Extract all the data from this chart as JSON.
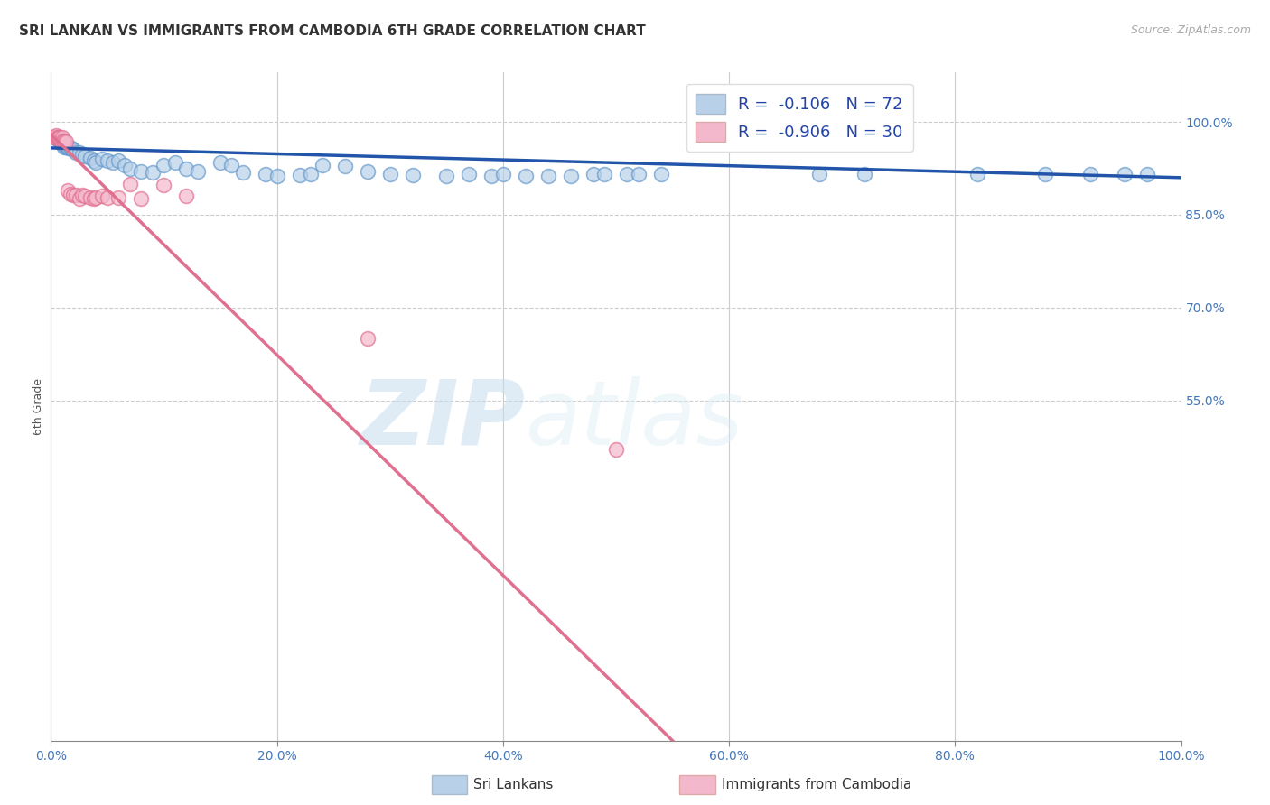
{
  "title": "SRI LANKAN VS IMMIGRANTS FROM CAMBODIA 6TH GRADE CORRELATION CHART",
  "source": "Source: ZipAtlas.com",
  "ylabel": "6th Grade",
  "right_yticks": [
    "100.0%",
    "85.0%",
    "70.0%",
    "55.0%"
  ],
  "right_ytick_vals": [
    1.0,
    0.85,
    0.7,
    0.55
  ],
  "watermark_zip": "ZIP",
  "watermark_atlas": "atlas",
  "legend_blue_label": "R =  -0.106   N = 72",
  "legend_pink_label": "R =  -0.906   N = 30",
  "legend_blue_color": "#b8d0e8",
  "legend_pink_color": "#f4b8cc",
  "scatter_blue_facecolor": "#b8d0e8",
  "scatter_blue_edgecolor": "#6699cc",
  "scatter_pink_facecolor": "#f4b8cc",
  "scatter_pink_edgecolor": "#e07090",
  "line_blue_color": "#2255aa",
  "line_pink_color": "#e07090",
  "background_color": "#ffffff",
  "grid_color": "#cccccc",
  "bottom_legend_1": "Sri Lankans",
  "bottom_legend_2": "Immigrants from Cambodia",
  "title_fontsize": 11,
  "axis_label_fontsize": 9,
  "tick_fontsize": 10,
  "source_fontsize": 9,
  "blue_scatter_x": [
    0.003,
    0.004,
    0.005,
    0.006,
    0.007,
    0.007,
    0.008,
    0.009,
    0.01,
    0.01,
    0.011,
    0.012,
    0.013,
    0.014,
    0.015,
    0.016,
    0.017,
    0.018,
    0.02,
    0.022,
    0.025,
    0.028,
    0.03,
    0.035,
    0.038,
    0.04,
    0.045,
    0.05,
    0.055,
    0.06,
    0.065,
    0.07,
    0.08,
    0.09,
    0.1,
    0.11,
    0.12,
    0.13,
    0.15,
    0.16,
    0.17,
    0.19,
    0.2,
    0.22,
    0.23,
    0.24,
    0.26,
    0.28,
    0.3,
    0.32,
    0.35,
    0.37,
    0.39,
    0.4,
    0.42,
    0.44,
    0.46,
    0.48,
    0.49,
    0.51,
    0.52,
    0.54,
    0.6,
    0.62,
    0.65,
    0.68,
    0.72,
    0.82,
    0.88,
    0.92,
    0.95,
    0.97
  ],
  "blue_scatter_y": [
    0.975,
    0.975,
    0.975,
    0.975,
    0.975,
    0.97,
    0.97,
    0.965,
    0.97,
    0.965,
    0.965,
    0.96,
    0.96,
    0.96,
    0.96,
    0.958,
    0.958,
    0.958,
    0.955,
    0.95,
    0.95,
    0.948,
    0.945,
    0.942,
    0.938,
    0.935,
    0.94,
    0.938,
    0.935,
    0.938,
    0.93,
    0.925,
    0.92,
    0.918,
    0.93,
    0.935,
    0.925,
    0.92,
    0.935,
    0.93,
    0.918,
    0.916,
    0.912,
    0.914,
    0.916,
    0.93,
    0.928,
    0.92,
    0.916,
    0.914,
    0.912,
    0.916,
    0.912,
    0.916,
    0.912,
    0.912,
    0.912,
    0.916,
    0.916,
    0.916,
    0.916,
    0.916,
    0.978,
    0.978,
    0.978,
    0.916,
    0.916,
    0.916,
    0.916,
    0.916,
    0.916,
    0.916
  ],
  "pink_scatter_x": [
    0.003,
    0.004,
    0.005,
    0.006,
    0.007,
    0.008,
    0.009,
    0.01,
    0.011,
    0.012,
    0.013,
    0.015,
    0.017,
    0.02,
    0.022,
    0.025,
    0.028,
    0.03,
    0.035,
    0.038,
    0.04,
    0.045,
    0.05,
    0.06,
    0.07,
    0.08,
    0.1,
    0.12,
    0.28,
    0.5
  ],
  "pink_scatter_y": [
    0.975,
    0.975,
    0.978,
    0.975,
    0.975,
    0.975,
    0.97,
    0.975,
    0.97,
    0.968,
    0.968,
    0.89,
    0.884,
    0.882,
    0.882,
    0.876,
    0.882,
    0.88,
    0.878,
    0.876,
    0.878,
    0.88,
    0.878,
    0.878,
    0.9,
    0.876,
    0.898,
    0.88,
    0.65,
    0.47
  ],
  "blue_line_x0": 0.0,
  "blue_line_y0": 0.958,
  "blue_line_x1": 1.0,
  "blue_line_y1": 0.91,
  "pink_line_x0": 0.0,
  "pink_line_y0": 0.98,
  "pink_line_x1": 0.55,
  "pink_line_y1": 0.0,
  "xmin": 0.0,
  "xmax": 1.0,
  "ymin": 0.0,
  "ymax": 1.08
}
